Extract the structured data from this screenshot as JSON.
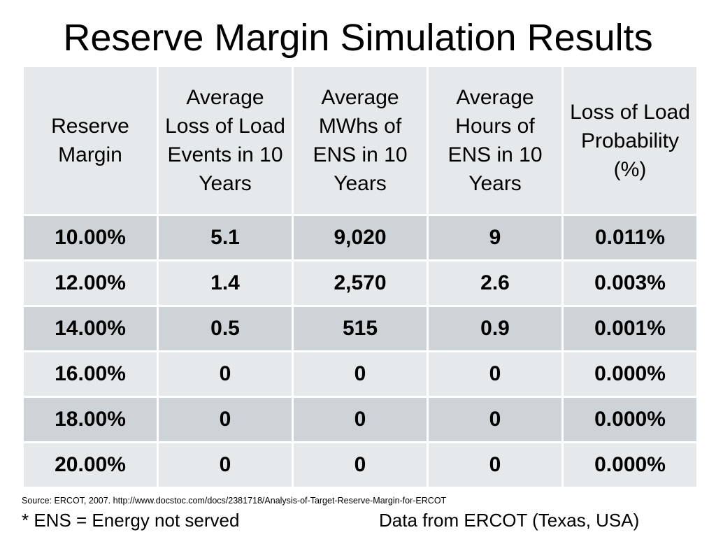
{
  "slide": {
    "title": "Reserve Margin Simulation Results",
    "source": "Source: ERCOT, 2007. http://www.docstoc.com/docs/2381718/Analysis-of-Target-Reserve-Margin-for-ERCOT",
    "footnote": "* ENS = Energy not served",
    "data_note": "Data from ERCOT (Texas, USA)"
  },
  "table": {
    "headers": [
      "Reserve Margin",
      "Average Loss of Load Events in 10 Years",
      "Average MWhs of ENS in 10 Years",
      "Average Hours of ENS in 10 Years",
      "Loss of Load Probability (%)"
    ],
    "rows": [
      [
        "10.00%",
        "5.1",
        "9,020",
        "9",
        "0.011%"
      ],
      [
        "12.00%",
        "1.4",
        "2,570",
        "2.6",
        "0.003%"
      ],
      [
        "14.00%",
        "0.5",
        "515",
        "0.9",
        "0.001%"
      ],
      [
        "16.00%",
        "0",
        "0",
        "0",
        "0.000%"
      ],
      [
        "18.00%",
        "0",
        "0",
        "0",
        "0.000%"
      ],
      [
        "20.00%",
        "0",
        "0",
        "0",
        "0.000%"
      ]
    ]
  },
  "colors": {
    "header_bg": "#e6e9eb",
    "row_dark_bg": "#cdd3d6",
    "row_light_bg": "#e6e9eb",
    "grid_line": "#ffffff"
  }
}
